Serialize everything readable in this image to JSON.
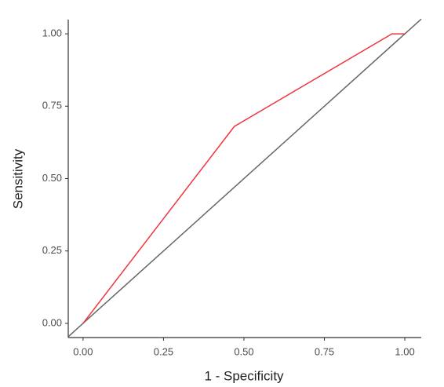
{
  "chart_data": {
    "type": "line",
    "x_label": "1 - Specificity",
    "y_label": "Sensitivity",
    "series": [
      {
        "color": "#f0363f",
        "x": [
          0,
          0.47,
          0.96,
          1
        ],
        "values": [
          0,
          0.68,
          1,
          1
        ]
      }
    ],
    "abline": {
      "slope": 1,
      "intercept": 0,
      "color": "#666666"
    },
    "xlim": [
      -0.046,
      1.051
    ],
    "ylim": [
      -0.049,
      1.049
    ],
    "xticks": [
      {
        "value": 0,
        "label": "0.00"
      },
      {
        "value": 0.25,
        "label": "0.25"
      },
      {
        "value": 0.5,
        "label": "0.50"
      },
      {
        "value": 0.75,
        "label": "0.75"
      },
      {
        "value": 1,
        "label": "1.00"
      }
    ],
    "yticks": [
      {
        "value": 0,
        "label": "0.00"
      },
      {
        "value": 0.25,
        "label": "0.25"
      },
      {
        "value": 0.5,
        "label": "0.50"
      },
      {
        "value": 0.75,
        "label": "0.75"
      },
      {
        "value": 1,
        "label": "1.00"
      }
    ],
    "grid": false
  }
}
